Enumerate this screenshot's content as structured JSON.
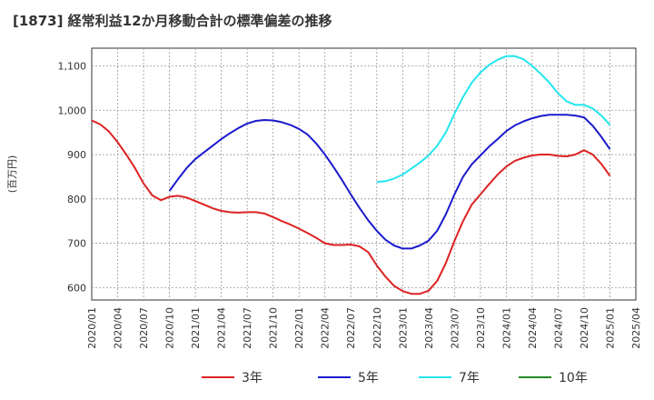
{
  "chart_data": {
    "type": "line",
    "title": "[1873]  経常利益12か月移動合計の標準偏差の推移",
    "ylabel": "(百万円)",
    "xlabel": "",
    "ylim": [
      572,
      1140
    ],
    "y_ticks": [
      600,
      700,
      800,
      900,
      1000,
      1100
    ],
    "y_tick_labels": [
      "600",
      "700",
      "800",
      "900",
      "1,000",
      "1,100"
    ],
    "x_range": [
      "2020-01",
      "2025-04"
    ],
    "x_ticks": [
      "2020/01",
      "2020/04",
      "2020/07",
      "2020/10",
      "2021/01",
      "2021/04",
      "2021/07",
      "2021/10",
      "2022/01",
      "2022/04",
      "2022/07",
      "2022/10",
      "2023/01",
      "2023/04",
      "2023/07",
      "2023/10",
      "2024/01",
      "2024/04",
      "2024/07",
      "2024/10",
      "2025/01",
      "2025/04"
    ],
    "grid": true,
    "legend_position": "bottom",
    "series": [
      {
        "name": "3年",
        "color": "#dd2222",
        "x": [
          "2020-01",
          "2020-02",
          "2020-03",
          "2020-04",
          "2020-05",
          "2020-06",
          "2020-07",
          "2020-08",
          "2020-09",
          "2020-10",
          "2020-11",
          "2020-12",
          "2021-01",
          "2021-02",
          "2021-03",
          "2021-04",
          "2021-05",
          "2021-06",
          "2021-07",
          "2021-08",
          "2021-09",
          "2021-10",
          "2021-11",
          "2021-12",
          "2022-01",
          "2022-02",
          "2022-03",
          "2022-04",
          "2022-05",
          "2022-06",
          "2022-07",
          "2022-08",
          "2022-09",
          "2022-10",
          "2022-11",
          "2022-12",
          "2023-01",
          "2023-02",
          "2023-03",
          "2023-04",
          "2023-05",
          "2023-06",
          "2023-07",
          "2023-08",
          "2023-09",
          "2023-10",
          "2023-11",
          "2023-12",
          "2024-01",
          "2024-02",
          "2024-03",
          "2024-04",
          "2024-05",
          "2024-06",
          "2024-07",
          "2024-08",
          "2024-09",
          "2024-10",
          "2024-11",
          "2024-12",
          "2025-01"
        ],
        "values": [
          977,
          968,
          952,
          928,
          900,
          870,
          835,
          808,
          797,
          805,
          807,
          803,
          795,
          787,
          779,
          773,
          770,
          769,
          770,
          770,
          767,
          759,
          750,
          742,
          733,
          723,
          712,
          700,
          696,
          696,
          697,
          693,
          680,
          650,
          625,
          604,
          592,
          586,
          586,
          593,
          615,
          655,
          705,
          750,
          787,
          810,
          833,
          855,
          873,
          886,
          893,
          898,
          900,
          900,
          897,
          896,
          900,
          910,
          900,
          879,
          852
        ]
      },
      {
        "name": "5年",
        "color": "#1a1acc",
        "x": [
          "2020-10",
          "2020-11",
          "2020-12",
          "2021-01",
          "2021-02",
          "2021-03",
          "2021-04",
          "2021-05",
          "2021-06",
          "2021-07",
          "2021-08",
          "2021-09",
          "2021-10",
          "2021-11",
          "2021-12",
          "2022-01",
          "2022-02",
          "2022-03",
          "2022-04",
          "2022-05",
          "2022-06",
          "2022-07",
          "2022-08",
          "2022-09",
          "2022-10",
          "2022-11",
          "2022-12",
          "2023-01",
          "2023-02",
          "2023-03",
          "2023-04",
          "2023-05",
          "2023-06",
          "2023-07",
          "2023-08",
          "2023-09",
          "2023-10",
          "2023-11",
          "2023-12",
          "2024-01",
          "2024-02",
          "2024-03",
          "2024-04",
          "2024-05",
          "2024-06",
          "2024-07",
          "2024-08",
          "2024-09",
          "2024-10",
          "2024-11",
          "2024-12",
          "2025-01"
        ],
        "values": [
          818,
          845,
          870,
          890,
          905,
          920,
          935,
          948,
          960,
          970,
          976,
          978,
          977,
          973,
          967,
          958,
          945,
          925,
          900,
          872,
          842,
          810,
          780,
          752,
          728,
          708,
          695,
          688,
          688,
          695,
          706,
          728,
          765,
          810,
          850,
          878,
          898,
          918,
          935,
          953,
          966,
          975,
          982,
          987,
          990,
          990,
          990,
          988,
          984,
          965,
          940,
          912
        ]
      },
      {
        "name": "7年",
        "color": "#22e6ee",
        "x": [
          "2022-10",
          "2022-11",
          "2022-12",
          "2023-01",
          "2023-02",
          "2023-03",
          "2023-04",
          "2023-05",
          "2023-06",
          "2023-07",
          "2023-08",
          "2023-09",
          "2023-10",
          "2023-11",
          "2023-12",
          "2024-01",
          "2024-02",
          "2024-03",
          "2024-04",
          "2024-05",
          "2024-06",
          "2024-07",
          "2024-08",
          "2024-09",
          "2024-10",
          "2024-11",
          "2024-12",
          "2025-01"
        ],
        "values": [
          838,
          840,
          846,
          855,
          868,
          882,
          898,
          920,
          950,
          992,
          1030,
          1062,
          1085,
          1102,
          1114,
          1122,
          1122,
          1115,
          1100,
          1082,
          1062,
          1038,
          1020,
          1012,
          1012,
          1004,
          988,
          967
        ]
      },
      {
        "name": "10年",
        "color": "#228822",
        "x": [],
        "values": []
      }
    ]
  }
}
